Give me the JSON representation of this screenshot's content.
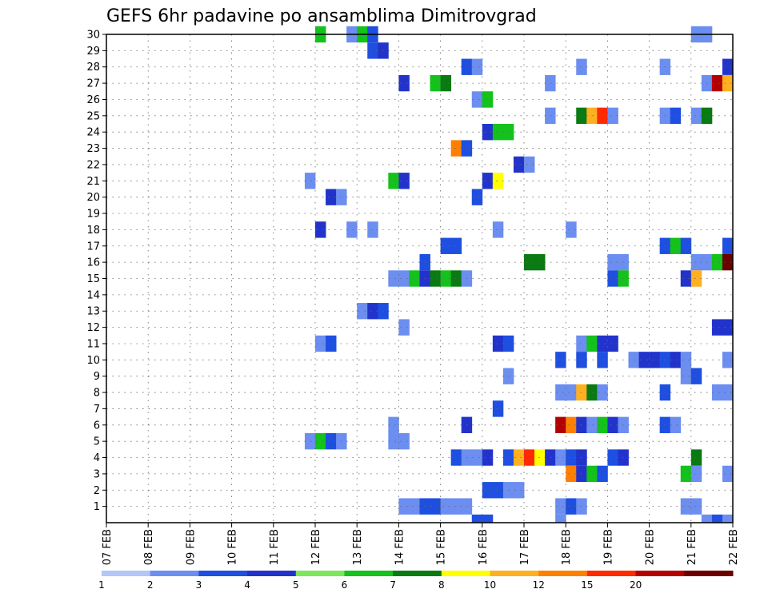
{
  "chart_data": {
    "type": "heatmap",
    "title": "GEFS 6hr padavine po ansamblima Dimitrovgrad",
    "xlabel": "",
    "ylabel": "",
    "x_ticks": [
      "07 FEB",
      "08 FEB",
      "09 FEB",
      "10 FEB",
      "11 FEB",
      "12 FEB",
      "13 FEB",
      "14 FEB",
      "15 FEB",
      "16 FEB",
      "17 FEB",
      "18 FEB",
      "19 FEB",
      "20 FEB",
      "21 FEB",
      "22 FEB"
    ],
    "x_range": [
      0,
      60
    ],
    "y_ticks": [
      1,
      2,
      3,
      4,
      5,
      6,
      7,
      8,
      9,
      10,
      11,
      12,
      13,
      14,
      15,
      16,
      17,
      18,
      19,
      20,
      21,
      22,
      23,
      24,
      25,
      26,
      27,
      28,
      29,
      30
    ],
    "y_range": [
      0,
      30
    ],
    "grid": true,
    "color_scale": {
      "colors": [
        "#b3c6f7",
        "#6b8ef0",
        "#1e4fe0",
        "#2233cc",
        "#7ae85a",
        "#13c21a",
        "#0a7a12",
        "#ffff00",
        "#ffb020",
        "#ff7f00",
        "#ff2a00",
        "#b30000",
        "#6b0000"
      ],
      "labels": [
        "1",
        "2",
        "3",
        "4",
        "5",
        "6",
        "7",
        "8",
        "10",
        "12",
        "15",
        "20"
      ]
    },
    "cells": [
      [
        20,
        30,
        5
      ],
      [
        23,
        30,
        1
      ],
      [
        24,
        30,
        5
      ],
      [
        25,
        30,
        2
      ],
      [
        56,
        30,
        1
      ],
      [
        57,
        30,
        1
      ],
      [
        25,
        29,
        2
      ],
      [
        26,
        29,
        3
      ],
      [
        34,
        28,
        2
      ],
      [
        35,
        28,
        1
      ],
      [
        45,
        28,
        1
      ],
      [
        53,
        28,
        1
      ],
      [
        59,
        28,
        3
      ],
      [
        28,
        27,
        3
      ],
      [
        31,
        27,
        5
      ],
      [
        32,
        27,
        6
      ],
      [
        42,
        27,
        1
      ],
      [
        57,
        27,
        1
      ],
      [
        58,
        27,
        11
      ],
      [
        59,
        27,
        8
      ],
      [
        35,
        26,
        1
      ],
      [
        36,
        26,
        5
      ],
      [
        42,
        25,
        1
      ],
      [
        45,
        25,
        6
      ],
      [
        46,
        25,
        8
      ],
      [
        47,
        25,
        10
      ],
      [
        48,
        25,
        1
      ],
      [
        53,
        25,
        1
      ],
      [
        54,
        25,
        2
      ],
      [
        56,
        25,
        1
      ],
      [
        57,
        25,
        6
      ],
      [
        36,
        24,
        3
      ],
      [
        37,
        24,
        5
      ],
      [
        38,
        24,
        5
      ],
      [
        33,
        23,
        9
      ],
      [
        34,
        23,
        2
      ],
      [
        39,
        22,
        3
      ],
      [
        40,
        22,
        1
      ],
      [
        19,
        21,
        1
      ],
      [
        27,
        21,
        5
      ],
      [
        28,
        21,
        3
      ],
      [
        36,
        21,
        3
      ],
      [
        37,
        21,
        7
      ],
      [
        21,
        20,
        3
      ],
      [
        22,
        20,
        1
      ],
      [
        35,
        20,
        2
      ],
      [
        20,
        18,
        3
      ],
      [
        23,
        18,
        1
      ],
      [
        25,
        18,
        1
      ],
      [
        37,
        18,
        1
      ],
      [
        44,
        18,
        1
      ],
      [
        32,
        17,
        2
      ],
      [
        33,
        17,
        2
      ],
      [
        53,
        17,
        2
      ],
      [
        54,
        17,
        5
      ],
      [
        55,
        17,
        2
      ],
      [
        59,
        17,
        2
      ],
      [
        30,
        16,
        2
      ],
      [
        40,
        16,
        6
      ],
      [
        41,
        16,
        6
      ],
      [
        48,
        16,
        1
      ],
      [
        49,
        16,
        1
      ],
      [
        56,
        16,
        1
      ],
      [
        57,
        16,
        1
      ],
      [
        58,
        16,
        5
      ],
      [
        59,
        16,
        12
      ],
      [
        27,
        15,
        1
      ],
      [
        28,
        15,
        1
      ],
      [
        29,
        15,
        5
      ],
      [
        30,
        15,
        3
      ],
      [
        31,
        15,
        6
      ],
      [
        32,
        15,
        5
      ],
      [
        33,
        15,
        6
      ],
      [
        34,
        15,
        1
      ],
      [
        48,
        15,
        2
      ],
      [
        49,
        15,
        5
      ],
      [
        55,
        15,
        3
      ],
      [
        56,
        15,
        8
      ],
      [
        24,
        13,
        1
      ],
      [
        25,
        13,
        3
      ],
      [
        26,
        13,
        2
      ],
      [
        28,
        12,
        1
      ],
      [
        58,
        12,
        3
      ],
      [
        59,
        12,
        3
      ],
      [
        20,
        11,
        1
      ],
      [
        21,
        11,
        2
      ],
      [
        37,
        11,
        3
      ],
      [
        38,
        11,
        2
      ],
      [
        45,
        11,
        1
      ],
      [
        46,
        11,
        5
      ],
      [
        47,
        11,
        3
      ],
      [
        48,
        11,
        3
      ],
      [
        43,
        10,
        2
      ],
      [
        45,
        10,
        2
      ],
      [
        47,
        10,
        2
      ],
      [
        50,
        10,
        1
      ],
      [
        51,
        10,
        3
      ],
      [
        52,
        10,
        3
      ],
      [
        53,
        10,
        2
      ],
      [
        54,
        10,
        3
      ],
      [
        55,
        10,
        1
      ],
      [
        59,
        10,
        1
      ],
      [
        38,
        9,
        1
      ],
      [
        55,
        9,
        1
      ],
      [
        56,
        9,
        2
      ],
      [
        43,
        8,
        1
      ],
      [
        44,
        8,
        1
      ],
      [
        45,
        8,
        8
      ],
      [
        46,
        8,
        6
      ],
      [
        47,
        8,
        1
      ],
      [
        53,
        8,
        2
      ],
      [
        58,
        8,
        1
      ],
      [
        59,
        8,
        1
      ],
      [
        37,
        7,
        2
      ],
      [
        27,
        6,
        1
      ],
      [
        34,
        6,
        3
      ],
      [
        43,
        6,
        11
      ],
      [
        44,
        6,
        9
      ],
      [
        45,
        6,
        3
      ],
      [
        46,
        6,
        1
      ],
      [
        47,
        6,
        5
      ],
      [
        48,
        6,
        3
      ],
      [
        49,
        6,
        1
      ],
      [
        53,
        6,
        2
      ],
      [
        54,
        6,
        1
      ],
      [
        19,
        5,
        1
      ],
      [
        20,
        5,
        5
      ],
      [
        21,
        5,
        2
      ],
      [
        22,
        5,
        1
      ],
      [
        27,
        5,
        1
      ],
      [
        28,
        5,
        1
      ],
      [
        33,
        4,
        2
      ],
      [
        34,
        4,
        1
      ],
      [
        35,
        4,
        1
      ],
      [
        36,
        4,
        3
      ],
      [
        38,
        4,
        2
      ],
      [
        39,
        4,
        8
      ],
      [
        40,
        4,
        10
      ],
      [
        41,
        4,
        7
      ],
      [
        42,
        4,
        3
      ],
      [
        43,
        4,
        1
      ],
      [
        44,
        4,
        2
      ],
      [
        45,
        4,
        3
      ],
      [
        48,
        4,
        2
      ],
      [
        49,
        4,
        3
      ],
      [
        56,
        4,
        6
      ],
      [
        44,
        3,
        9
      ],
      [
        45,
        3,
        3
      ],
      [
        46,
        3,
        5
      ],
      [
        47,
        3,
        2
      ],
      [
        55,
        3,
        5
      ],
      [
        56,
        3,
        1
      ],
      [
        59,
        3,
        1
      ],
      [
        36,
        2,
        2
      ],
      [
        37,
        2,
        2
      ],
      [
        38,
        2,
        1
      ],
      [
        39,
        2,
        1
      ],
      [
        28,
        1,
        1
      ],
      [
        29,
        1,
        1
      ],
      [
        30,
        1,
        2
      ],
      [
        31,
        1,
        2
      ],
      [
        32,
        1,
        1
      ],
      [
        33,
        1,
        1
      ],
      [
        34,
        1,
        1
      ],
      [
        43,
        1,
        1
      ],
      [
        44,
        1,
        2
      ],
      [
        45,
        1,
        1
      ],
      [
        55,
        1,
        1
      ],
      [
        56,
        1,
        1
      ],
      [
        35,
        0,
        2
      ],
      [
        36,
        0,
        2
      ],
      [
        43,
        0,
        1
      ],
      [
        57,
        0,
        1
      ],
      [
        58,
        0,
        2
      ],
      [
        59,
        0,
        1
      ]
    ]
  }
}
